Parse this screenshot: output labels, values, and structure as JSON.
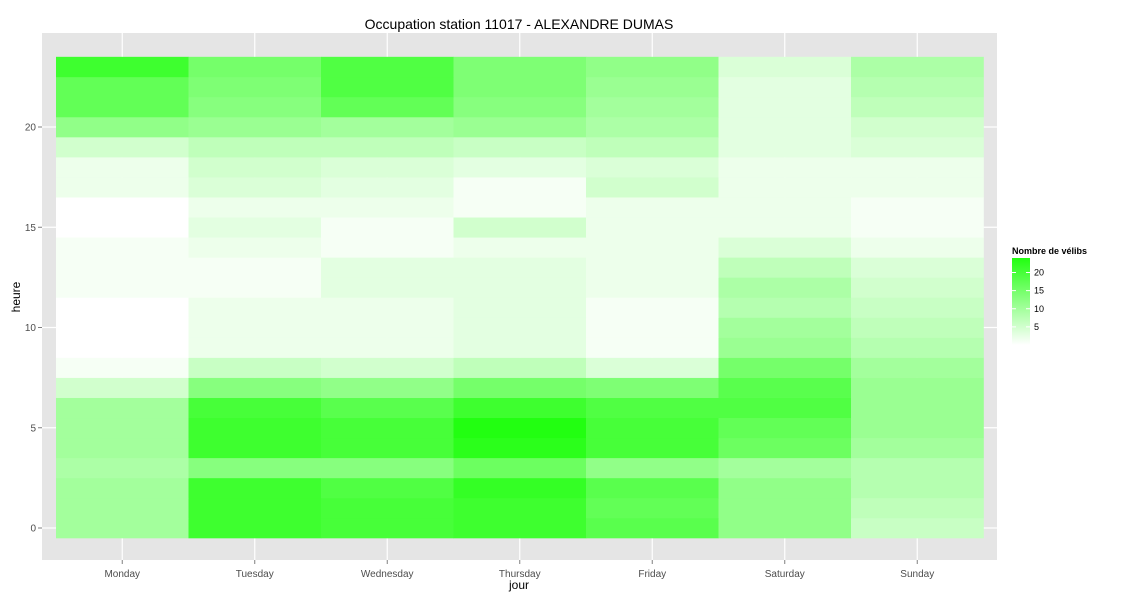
{
  "chart_data": {
    "type": "heatmap",
    "title": "Occupation station 11017 - ALEXANDRE DUMAS",
    "xlabel": "jour",
    "ylabel": "heure",
    "x_categories": [
      "Monday",
      "Tuesday",
      "Wednesday",
      "Thursday",
      "Friday",
      "Saturday",
      "Sunday"
    ],
    "y_hours": [
      0,
      1,
      2,
      3,
      4,
      5,
      6,
      7,
      8,
      9,
      10,
      11,
      12,
      13,
      14,
      15,
      16,
      17,
      18,
      19,
      20,
      21,
      22,
      23
    ],
    "y_ticks": [
      0,
      5,
      10,
      15,
      20
    ],
    "ylim": [
      -0.5,
      23.5
    ],
    "values": [
      [
        10,
        21,
        20,
        21,
        18,
        12,
        6
      ],
      [
        10,
        21,
        20,
        21,
        17,
        12,
        7
      ],
      [
        10,
        21,
        19,
        22,
        18,
        12,
        8
      ],
      [
        9,
        13,
        13,
        16,
        12,
        10,
        8
      ],
      [
        10,
        21,
        20,
        23,
        20,
        16,
        10
      ],
      [
        10,
        21,
        20,
        24,
        20,
        17,
        11
      ],
      [
        10,
        20,
        18,
        21,
        19,
        19,
        11
      ],
      [
        5,
        13,
        12,
        15,
        14,
        18,
        11
      ],
      [
        1,
        6,
        5,
        7,
        4,
        15,
        10
      ],
      [
        0,
        2,
        2,
        3,
        1,
        11,
        8
      ],
      [
        0,
        2,
        2,
        3,
        1,
        10,
        7
      ],
      [
        0,
        2,
        2,
        3,
        1,
        8,
        6
      ],
      [
        1,
        1,
        3,
        3,
        2,
        9,
        5
      ],
      [
        1,
        1,
        3,
        3,
        2,
        7,
        4
      ],
      [
        1,
        2,
        1,
        2,
        2,
        4,
        2
      ],
      [
        0,
        3,
        1,
        5,
        2,
        2,
        1
      ],
      [
        0,
        2,
        2,
        1,
        2,
        2,
        1
      ],
      [
        2,
        4,
        3,
        1,
        5,
        2,
        2
      ],
      [
        2,
        5,
        4,
        3,
        4,
        2,
        2
      ],
      [
        5,
        7,
        7,
        6,
        7,
        3,
        4
      ],
      [
        12,
        11,
        10,
        11,
        9,
        3,
        5
      ],
      [
        17,
        13,
        17,
        13,
        10,
        3,
        7
      ],
      [
        17,
        14,
        19,
        14,
        11,
        3,
        8
      ],
      [
        21,
        15,
        19,
        14,
        12,
        4,
        9
      ]
    ],
    "legend": {
      "title": "Nombre de vélibs",
      "position": "right",
      "ticks": [
        5,
        10,
        15,
        20
      ],
      "range": [
        0,
        24
      ]
    },
    "colors": {
      "low": "#ffffff",
      "high": "#22ff11",
      "panel": "#e5e5e5",
      "grid": "#ffffff"
    },
    "grid": true
  }
}
